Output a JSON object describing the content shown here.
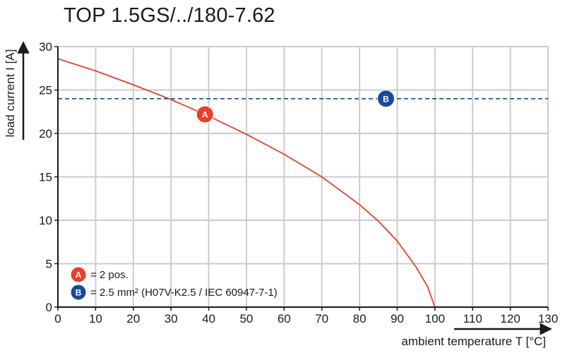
{
  "title": "TOP 1.5GS/../180-7.62",
  "colors": {
    "curve_a": "#e8402a",
    "line_b": "#174a9c",
    "grid": "#cccccc",
    "axis": "#1a1a1a"
  },
  "chart_data": {
    "type": "line",
    "title": "TOP 1.5GS/../180-7.62",
    "xlabel": "ambient temperature T [°C]",
    "ylabel": "load current I [A]",
    "xlim": [
      0,
      130
    ],
    "ylim": [
      0,
      30
    ],
    "x_ticks": [
      0,
      10,
      20,
      30,
      40,
      50,
      60,
      70,
      80,
      90,
      100,
      110,
      120,
      130
    ],
    "y_ticks": [
      0,
      5,
      10,
      15,
      20,
      25,
      30
    ],
    "grid": true,
    "series": [
      {
        "marker": "A",
        "style": "solid",
        "color": "#e8402a",
        "x": [
          0,
          10,
          20,
          30,
          40,
          50,
          60,
          70,
          80,
          85,
          90,
          95,
          98,
          100
        ],
        "y": [
          28.6,
          27.2,
          25.6,
          23.9,
          22.0,
          19.9,
          17.6,
          15.0,
          11.8,
          9.9,
          7.6,
          4.6,
          2.4,
          0
        ]
      },
      {
        "marker": "B",
        "style": "dashed",
        "color": "#174a9c",
        "x": [
          0,
          130
        ],
        "y": [
          24,
          24
        ]
      }
    ],
    "markers": [
      {
        "label": "A",
        "x": 39,
        "y": 22.2,
        "color": "#e8402a"
      },
      {
        "label": "B",
        "x": 87,
        "y": 24,
        "color": "#174a9c"
      }
    ],
    "legend": {
      "placement": "bottom-left",
      "entries": [
        {
          "marker": "A",
          "color": "#e8402a",
          "text": "= 2 pos."
        },
        {
          "marker": "B",
          "color": "#174a9c",
          "text": "= 2.5 mm² (H07V-K2.5 / IEC 60947-7-1)"
        }
      ]
    }
  }
}
